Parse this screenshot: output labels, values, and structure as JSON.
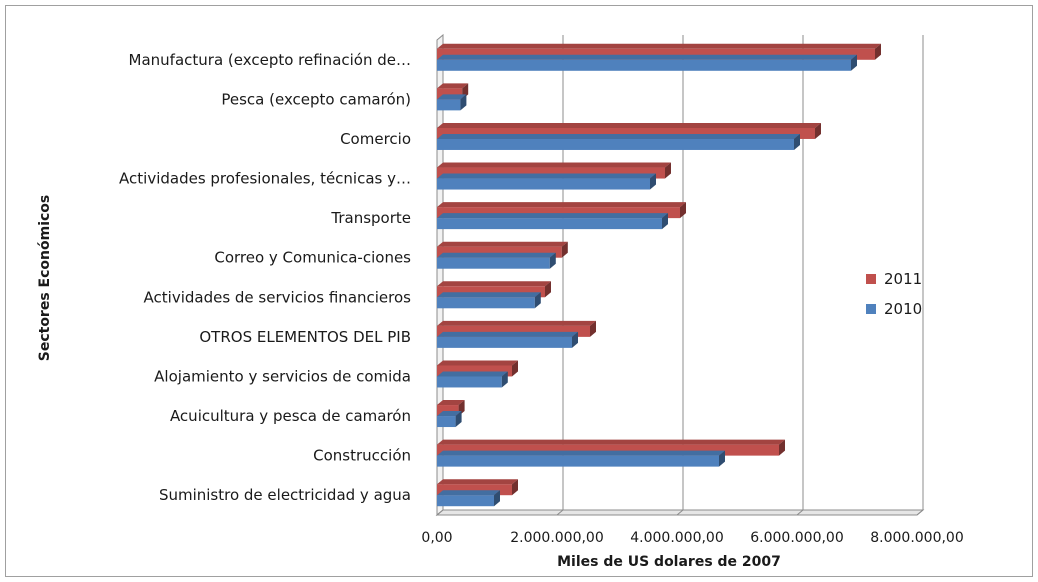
{
  "chart_data": {
    "type": "bar",
    "orientation": "horizontal",
    "style": "3d",
    "title": "",
    "xlabel": "Miles de US dolares de 2007",
    "ylabel": "Sectores Económicos",
    "xlim": [
      0,
      8000000
    ],
    "x_ticks": [
      "0,00",
      "2.000.000,00",
      "4.000.000,00",
      "6.000.000,00",
      "8.000.000,00"
    ],
    "grid": true,
    "legend_position": "right",
    "categories": [
      "Manufactura (excepto refinación de…",
      "Pesca (excepto camarón)",
      "Comercio",
      "Actividades profesionales, técnicas y…",
      "Transporte",
      "Correo y Comunica-ciones",
      "Actividades de servicios financieros",
      "OTROS ELEMENTOS DEL PIB",
      "Alojamiento y servicios de comida",
      "Acuicultura y pesca de camarón",
      "Construcción",
      "Suministro de electricidad y agua"
    ],
    "series": [
      {
        "name": "2011",
        "color": "#c0504d",
        "values": [
          7300000,
          420000,
          6300000,
          3800000,
          4050000,
          2080000,
          1800000,
          2550000,
          1250000,
          360000,
          5700000,
          1250000
        ]
      },
      {
        "name": "2010",
        "color": "#4f81bd",
        "values": [
          6900000,
          390000,
          5950000,
          3550000,
          3750000,
          1880000,
          1630000,
          2250000,
          1080000,
          310000,
          4700000,
          950000
        ]
      }
    ]
  }
}
